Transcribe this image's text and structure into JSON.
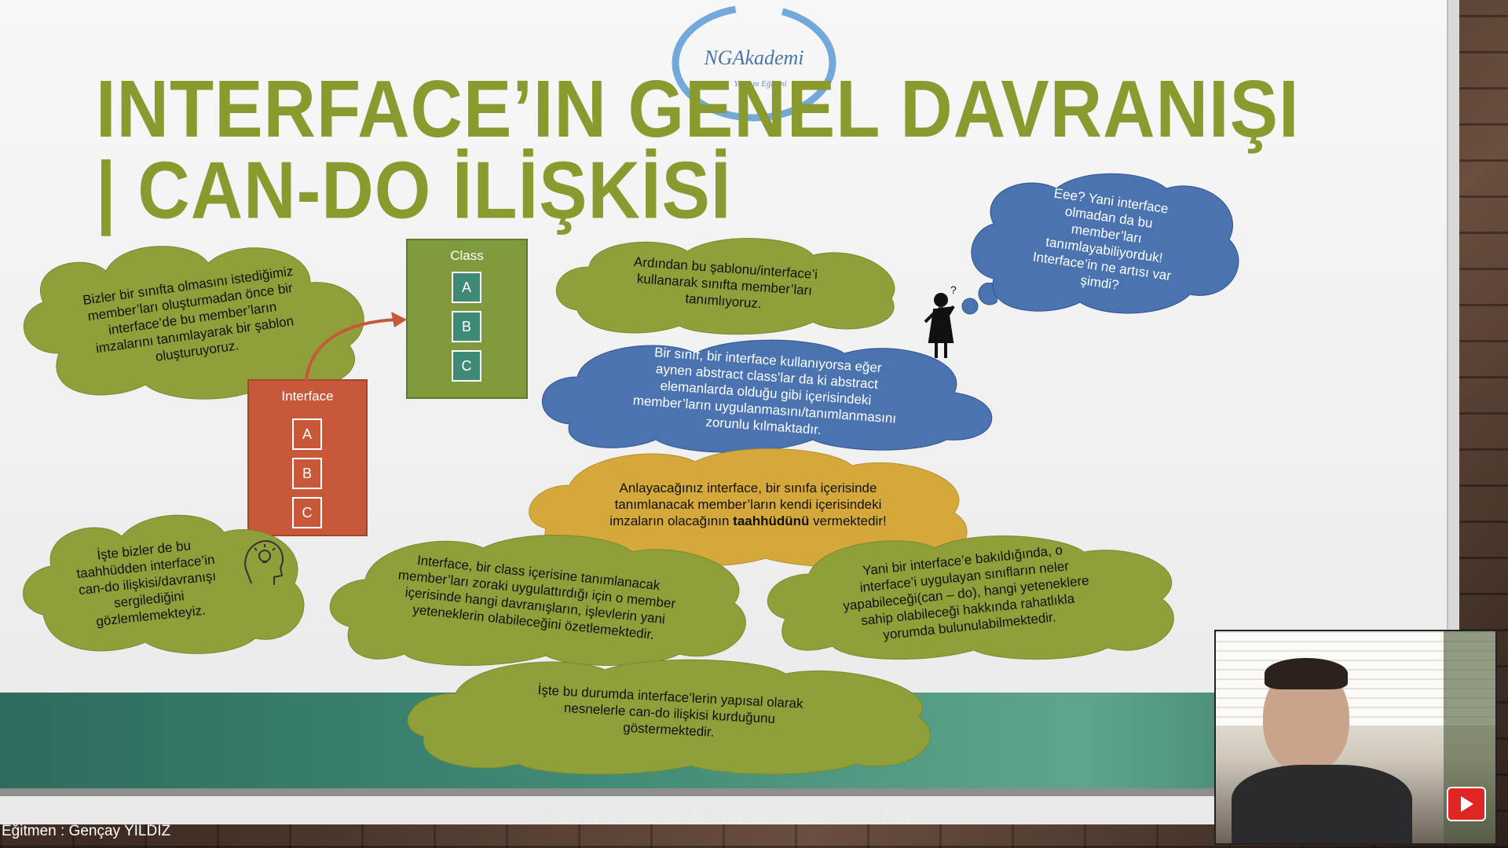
{
  "title": "INTERFACE’IN GENEL DAVRANIŞI | CAN-DO İLİŞKİSİ",
  "logo": {
    "text": "NGAkademi",
    "subtext": "Yazılım Eğitimi"
  },
  "interface_box": {
    "label": "Interface",
    "members": [
      "A",
      "B",
      "C"
    ]
  },
  "class_box": {
    "label": "Class",
    "members": [
      "A",
      "B",
      "C"
    ]
  },
  "clouds": {
    "left_top": "Bizler bir sınıfta olmasını istediğimiz member’ları oluşturmadan önce bir interface’de bu member’ların imzalarını tanımlayarak bir şablon oluşturuyoruz.",
    "center_top": "Ardından bu şablonu/interface’i kullanarak sınıfta member’ları tanımlıyoruz.",
    "center_blue": "Bir sınıf, bir interface kullanıyorsa eğer aynen abstract class’lar da ki abstract elemanlarda olduğu gibi içerisindeki member’ların uygulanmasını/tanımlanmasını zorunlu kılmaktadır.",
    "right_blue": "Eee? Yani interface olmadan da bu member’ları tanımlayabiliyorduk! Interface’in ne artısı var şimdi?",
    "center_orange_part1": "Anlayacağınız interface, bir sınıfa içerisinde tanımlanacak member’ların kendi içerisindeki imzaların olacağının",
    "center_orange_bold": "taahhüdünü",
    "center_orange_part2": "vermektedir!",
    "left_bottom": "İşte bizler de bu taahhüdden interface’in can-do ilişkisi/davranışı sergilediğini gözlemlemekteyiz.",
    "center_bottom": "Interface, bir class içerisine tanımlanacak member’ları zoraki uygulattırdığı için o member içerisinde hangi davranışların, işlevlerin yani yeteneklerin olabileceğini özetlemektedir.",
    "right_bottom": "Yani bir interface’e bakıldığında, o interface’i uygulayan sınıfların neler yapabileceği(can – do), hangi yeteneklere sahip olabileceği hakkında rahatlıkla yorumda bulunulabilmektedir.",
    "bottom_center": "İşte bu durumda interface’lerin yapısal olarak nesnelerle can-do ilişkisi kurduğunu göstermektedir."
  },
  "thinking_person_mark": "?",
  "footer": {
    "instructor": "Eğitmen : Gençay YILDIZ",
    "url": "https://www.ngakademi.com"
  },
  "colors": {
    "title_green": "#8a9a2f",
    "cloud_green": "#8f9f3a",
    "cloud_blue": "#4a73b0",
    "cloud_orange": "#d4a83a",
    "interface_box": "#c8583a",
    "class_box": "#7f9a3c"
  },
  "icons": [
    "thinking-head-icon",
    "thinking-person-icon",
    "play-button-icon",
    "ngakademi-logo"
  ]
}
